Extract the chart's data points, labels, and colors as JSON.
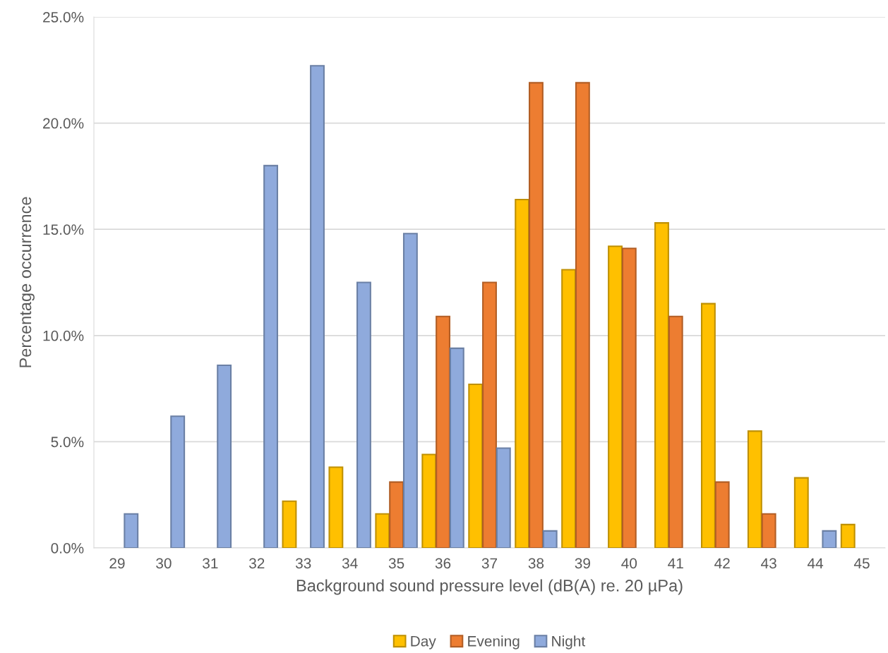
{
  "chart_data": {
    "type": "bar",
    "xlabel": "Background sound pressure level (dB(A) re. 20 µPa)",
    "ylabel": "Percentage occurrence",
    "categories": [
      "29",
      "30",
      "31",
      "32",
      "33",
      "34",
      "35",
      "36",
      "37",
      "38",
      "39",
      "40",
      "41",
      "42",
      "43",
      "44",
      "45"
    ],
    "series": [
      {
        "name": "Day",
        "color": "#ffc000",
        "values": [
          0,
          0,
          0,
          0,
          2.2,
          3.8,
          1.6,
          4.4,
          7.7,
          16.4,
          13.1,
          14.2,
          15.3,
          11.5,
          5.5,
          3.3,
          1.1
        ]
      },
      {
        "name": "Evening",
        "color": "#ed7d31",
        "values": [
          0,
          0,
          0,
          0,
          0,
          0,
          3.1,
          10.9,
          12.5,
          21.9,
          21.9,
          14.1,
          10.9,
          3.1,
          1.6,
          0,
          0
        ]
      },
      {
        "name": "Night",
        "color": "#8faadc",
        "values": [
          1.6,
          6.2,
          8.6,
          18.0,
          22.7,
          12.5,
          14.8,
          9.4,
          4.7,
          0.8,
          0,
          0,
          0,
          0,
          0,
          0.8,
          0
        ]
      }
    ],
    "ylim": [
      0,
      25
    ],
    "yticks": [
      {
        "value": 0,
        "label": "0.0%"
      },
      {
        "value": 5,
        "label": "5.0%"
      },
      {
        "value": 10,
        "label": "10.0%"
      },
      {
        "value": 15,
        "label": "15.0%"
      },
      {
        "value": 20,
        "label": "20.0%"
      },
      {
        "value": 25,
        "label": "25.0%"
      }
    ],
    "grid": "y",
    "legend": "bottom"
  }
}
